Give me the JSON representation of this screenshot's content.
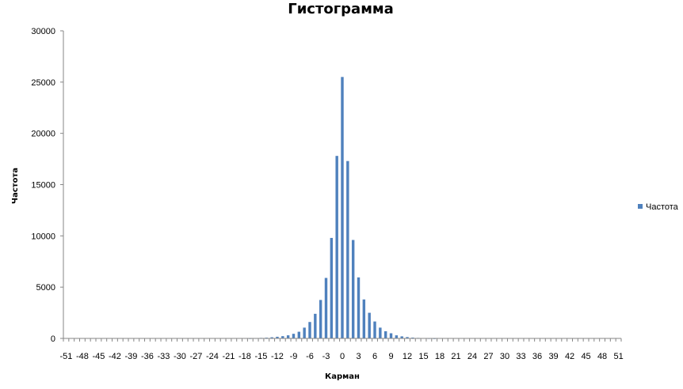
{
  "chart_data": {
    "type": "bar",
    "title": "Гистограмма",
    "xlabel": "Карман",
    "ylabel": "Частота",
    "ylim": [
      0,
      30000
    ],
    "yticks": [
      "0",
      "5000",
      "10000",
      "15000",
      "20000",
      "25000",
      "30000"
    ],
    "xticks": [
      "-51",
      "-48",
      "-45",
      "-42",
      "-39",
      "-36",
      "-33",
      "-30",
      "-27",
      "-24",
      "-21",
      "-18",
      "-15",
      "-12",
      "-9",
      "-6",
      "-3",
      "0",
      "3",
      "6",
      "9",
      "12",
      "15",
      "18",
      "21",
      "24",
      "27",
      "30",
      "33",
      "36",
      "39",
      "42",
      "45",
      "48",
      "51"
    ],
    "grid": false,
    "legend_position": "right",
    "bar_color": "#4F81BD",
    "categories": [
      -51,
      -50,
      -49,
      -48,
      -47,
      -46,
      -45,
      -44,
      -43,
      -42,
      -41,
      -40,
      -39,
      -38,
      -37,
      -36,
      -35,
      -34,
      -33,
      -32,
      -31,
      -30,
      -29,
      -28,
      -27,
      -26,
      -25,
      -24,
      -23,
      -22,
      -21,
      -20,
      -19,
      -18,
      -17,
      -16,
      -15,
      -14,
      -13,
      -12,
      -11,
      -10,
      -9,
      -8,
      -7,
      -6,
      -5,
      -4,
      -3,
      -2,
      -1,
      0,
      1,
      2,
      3,
      4,
      5,
      6,
      7,
      8,
      9,
      10,
      11,
      12,
      13,
      14,
      15,
      16,
      17,
      18,
      19,
      20,
      21,
      22,
      23,
      24,
      25,
      26,
      27,
      28,
      29,
      30,
      31,
      32,
      33,
      34,
      35,
      36,
      37,
      38,
      39,
      40,
      41,
      42,
      43,
      44,
      45,
      46,
      47,
      48,
      49,
      50,
      51
    ],
    "series": [
      {
        "name": "Частота",
        "values": [
          0,
          0,
          0,
          0,
          0,
          0,
          0,
          0,
          0,
          0,
          0,
          0,
          0,
          0,
          0,
          0,
          0,
          0,
          0,
          0,
          0,
          0,
          0,
          0,
          0,
          0,
          0,
          0,
          0,
          0,
          0,
          0,
          0,
          0,
          10,
          20,
          50,
          70,
          110,
          160,
          220,
          300,
          450,
          650,
          1050,
          1600,
          2400,
          3750,
          5900,
          9800,
          17800,
          25500,
          17300,
          9600,
          5950,
          3800,
          2500,
          1650,
          1050,
          700,
          500,
          300,
          200,
          130,
          80,
          50,
          30,
          15,
          5,
          0,
          0,
          0,
          0,
          0,
          0,
          0,
          0,
          0,
          0,
          0,
          0,
          0,
          0,
          0,
          0,
          0,
          0,
          0,
          0,
          0,
          0,
          0,
          0,
          0,
          0,
          0,
          0,
          0,
          0,
          0,
          0,
          0,
          0
        ]
      }
    ]
  }
}
